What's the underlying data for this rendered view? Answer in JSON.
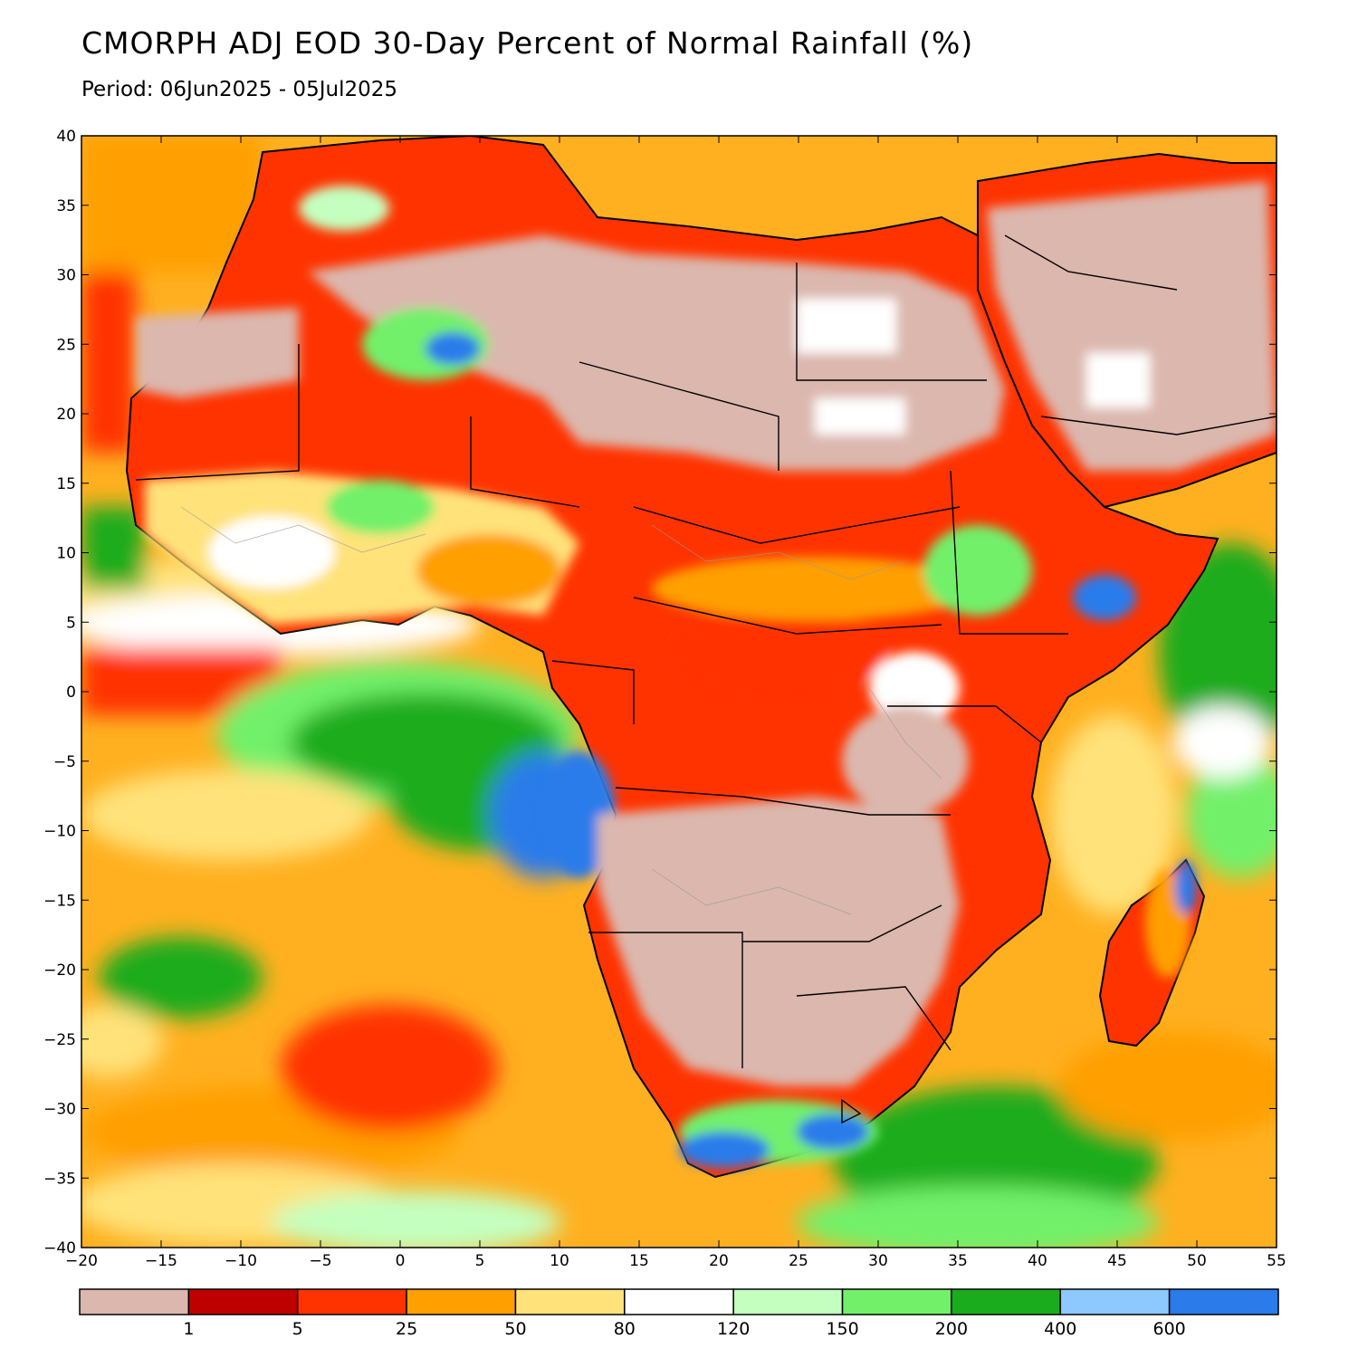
{
  "title": "CMORPH ADJ EOD 30-Day Percent of Normal Rainfall (%)",
  "subtitle": "Period: 06Jun2025 - 05Jul2025",
  "map": {
    "lon_range": [
      -20,
      55
    ],
    "lat_range": [
      -40,
      40
    ],
    "lon_ticks": [
      "−20",
      "−15",
      "−10",
      "−5",
      "0",
      "5",
      "10",
      "15",
      "20",
      "25",
      "30",
      "35",
      "40",
      "45",
      "50",
      "55"
    ],
    "lat_ticks": [
      "40",
      "35",
      "30",
      "25",
      "20",
      "15",
      "10",
      "5",
      "0",
      "−5",
      "−10",
      "−15",
      "−20",
      "−25",
      "−30",
      "−35",
      "−40"
    ]
  },
  "colorbar": {
    "colors": [
      "#dbb7ad",
      "#bf0000",
      "#ff3300",
      "#ff9f00",
      "#ffe27a",
      "#ffffff",
      "#c4ffbf",
      "#72f06a",
      "#1bac1e",
      "#8dc8ff",
      "#2b7bea"
    ],
    "labels": [
      "1",
      "5",
      "25",
      "50",
      "80",
      "120",
      "150",
      "200",
      "400",
      "600"
    ]
  }
}
